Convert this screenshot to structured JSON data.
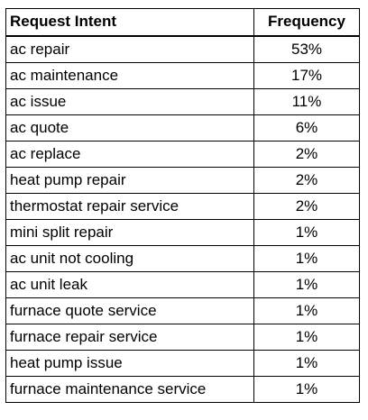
{
  "table": {
    "headers": [
      "Request Intent",
      "Frequency"
    ],
    "rows": [
      [
        "ac repair",
        "53%"
      ],
      [
        "ac maintenance",
        "17%"
      ],
      [
        "ac issue",
        "11%"
      ],
      [
        "ac quote",
        "6%"
      ],
      [
        "ac replace",
        "2%"
      ],
      [
        "heat pump repair",
        "2%"
      ],
      [
        "thermostat repair service",
        "2%"
      ],
      [
        "mini split repair",
        "1%"
      ],
      [
        "ac unit not cooling",
        "1%"
      ],
      [
        "ac unit leak",
        "1%"
      ],
      [
        "furnace quote service",
        "1%"
      ],
      [
        "furnace repair service",
        "1%"
      ],
      [
        "heat pump issue",
        "1%"
      ],
      [
        "furnace maintenance service",
        "1%"
      ]
    ]
  }
}
